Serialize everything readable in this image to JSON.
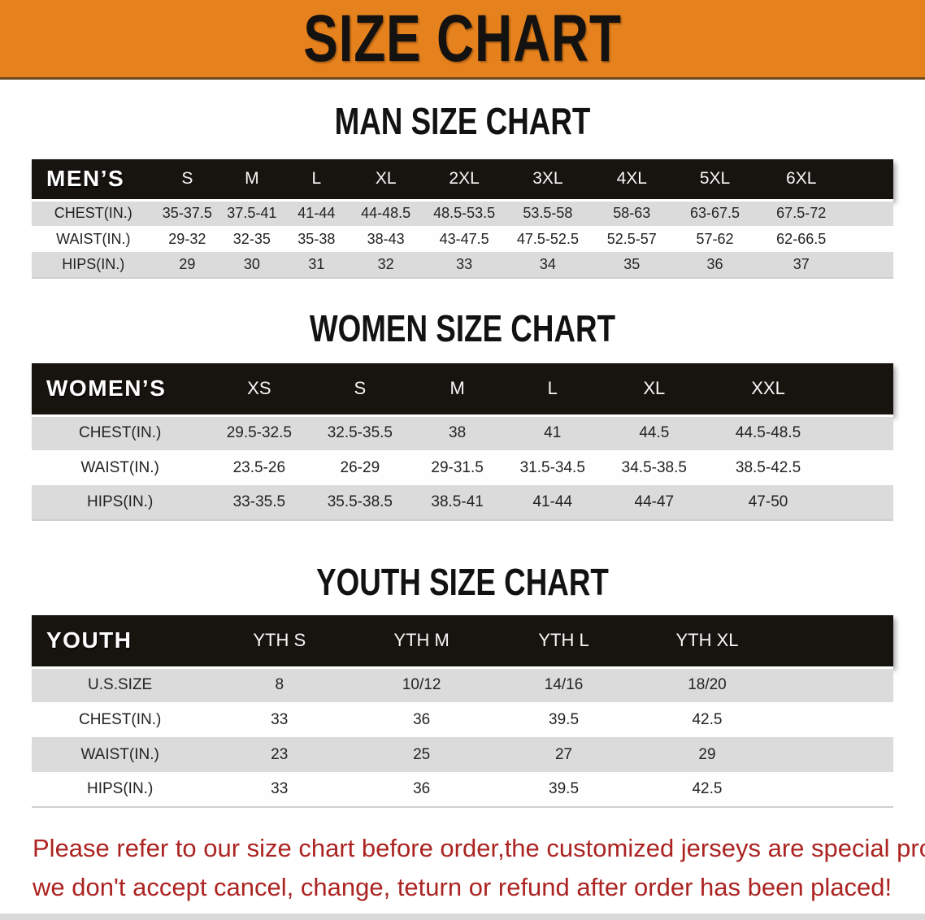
{
  "banner": {
    "title": "SIZE CHART",
    "bg_color": "#E6821E",
    "text_color": "#141210"
  },
  "colors": {
    "header_bar": "#17130f",
    "row_stripe": "#DBDBDB",
    "disclaimer_red": "#AC2422"
  },
  "sections": [
    {
      "heading": "MAN SIZE CHART",
      "table": {
        "header_label": "MEN’S",
        "columns": [
          "S",
          "M",
          "L",
          "XL",
          "2XL",
          "3XL",
          "4XL",
          "5XL",
          "6XL"
        ],
        "rows": [
          {
            "label": "CHEST(IN.)",
            "values": [
              "35-37.5",
              "37.5-41",
              "41-44",
              "44-48.5",
              "48.5-53.5",
              "53.5-58",
              "58-63",
              "63-67.5",
              "67.5-72"
            ]
          },
          {
            "label": "WAIST(IN.)",
            "values": [
              "29-32",
              "32-35",
              "35-38",
              "38-43",
              "43-47.5",
              "47.5-52.5",
              "52.5-57",
              "57-62",
              "62-66.5"
            ]
          },
          {
            "label": "HIPS(IN.)",
            "values": [
              "29",
              "30",
              "31",
              "32",
              "33",
              "34",
              "35",
              "36",
              "37"
            ]
          }
        ]
      }
    },
    {
      "heading": "WOMEN SIZE CHART",
      "table": {
        "header_label": "WOMEN’S",
        "columns": [
          "XS",
          "S",
          "M",
          "L",
          "XL",
          "XXL"
        ],
        "rows": [
          {
            "label": "CHEST(IN.)",
            "values": [
              "29.5-32.5",
              "32.5-35.5",
              "38",
              "41",
              "44.5",
              "44.5-48.5"
            ]
          },
          {
            "label": "WAIST(IN.)",
            "values": [
              "23.5-26",
              "26-29",
              "29-31.5",
              "31.5-34.5",
              "34.5-38.5",
              "38.5-42.5"
            ]
          },
          {
            "label": "HIPS(IN.)",
            "values": [
              "33-35.5",
              "35.5-38.5",
              "38.5-41",
              "41-44",
              "44-47",
              "47-50"
            ]
          }
        ]
      }
    },
    {
      "heading": "YOUTH SIZE CHART",
      "table": {
        "header_label": "YOUTH",
        "columns": [
          "YTH S",
          "YTH M",
          "YTH L",
          "YTH XL"
        ],
        "rows": [
          {
            "label": "U.S.SIZE",
            "values": [
              "8",
              "10/12",
              "14/16",
              "18/20"
            ]
          },
          {
            "label": "CHEST(IN.)",
            "values": [
              "33",
              "36",
              "39.5",
              "42.5"
            ]
          },
          {
            "label": "WAIST(IN.)",
            "values": [
              "23",
              "25",
              "27",
              "29"
            ]
          },
          {
            "label": "HIPS(IN.)",
            "values": [
              "33",
              "36",
              "39.5",
              "42.5"
            ]
          }
        ]
      }
    }
  ],
  "disclaimer": {
    "line1": "Please refer to our size chart before order,the customized jerseys are special products,",
    "line2": "we don't accept cancel, change, teturn or refund after order has been placed!"
  }
}
